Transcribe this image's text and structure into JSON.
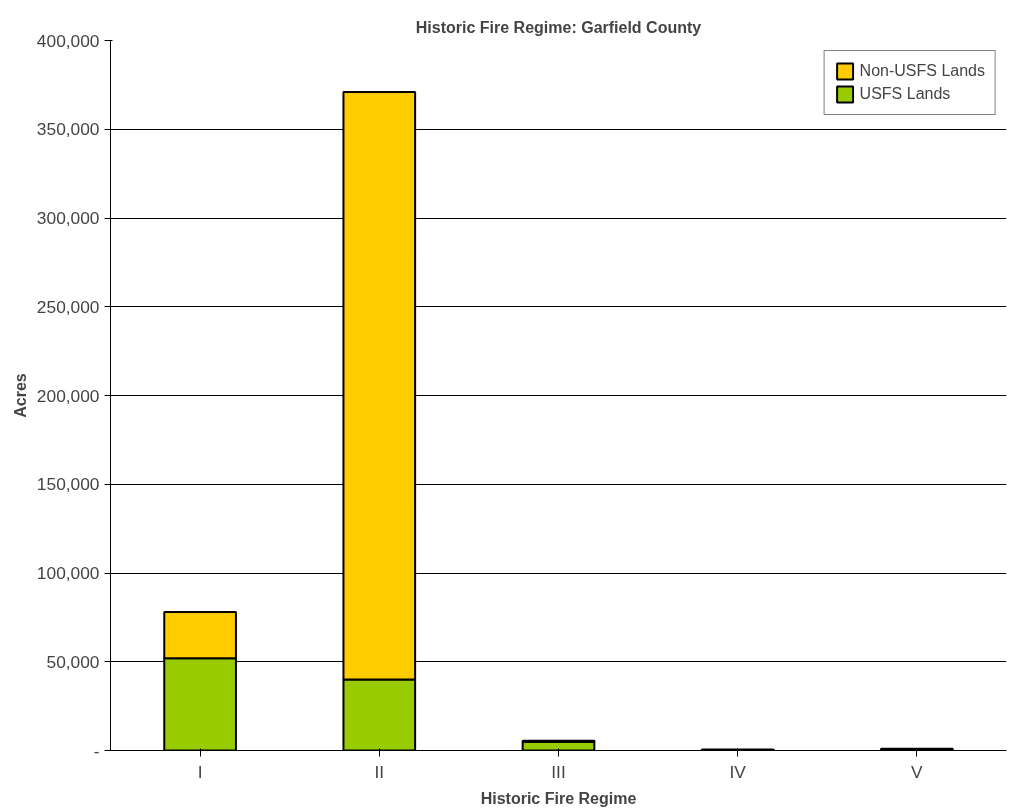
{
  "chart_data": {
    "type": "bar",
    "title": "Historic Fire Regime: Garfield County",
    "xlabel": "Historic Fire Regime",
    "ylabel": "Acres",
    "categories": [
      "I",
      "II",
      "III",
      "IV",
      "V"
    ],
    "stacked": true,
    "series": [
      {
        "name": "USFS Lands",
        "color": "#99cc00",
        "values": [
          52000,
          40000,
          5000,
          0,
          0
        ]
      },
      {
        "name": "Non-USFS Lands",
        "color": "#ffcc00",
        "values": [
          26000,
          331000,
          500,
          500,
          1000
        ]
      }
    ],
    "ylim": [
      0,
      400000
    ],
    "yticks": [
      {
        "value": 0,
        "label": "-"
      },
      {
        "value": 50000,
        "label": "50,000"
      },
      {
        "value": 100000,
        "label": "100,000"
      },
      {
        "value": 150000,
        "label": "150,000"
      },
      {
        "value": 200000,
        "label": "200,000"
      },
      {
        "value": 250000,
        "label": "250,000"
      },
      {
        "value": 300000,
        "label": "300,000"
      },
      {
        "value": 350000,
        "label": "350,000"
      },
      {
        "value": 400000,
        "label": "400,000"
      }
    ],
    "grid": "y",
    "legend": "top right"
  }
}
